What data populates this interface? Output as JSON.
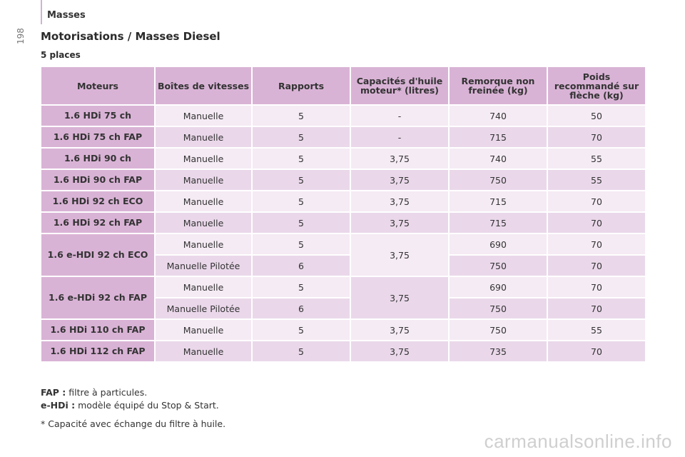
{
  "header": {
    "section": "Masses",
    "page_number": "198"
  },
  "title": "Motorisations / Masses Diesel",
  "subtitle": "5 places",
  "table": {
    "headers": [
      "Moteurs",
      "Boîtes de vitesses",
      "Rapports",
      "Capacités d'huile moteur* (litres)",
      "Remorque non freinée (kg)",
      "Poids recommandé sur flèche (kg)"
    ],
    "rows": [
      {
        "engine": "1.6 HDi 75 ch",
        "gearbox": "Manuelle",
        "ratios": "5",
        "oil": "-",
        "trailer": "740",
        "nose_weight": "50"
      },
      {
        "engine": "1.6 HDi 75 ch FAP",
        "gearbox": "Manuelle",
        "ratios": "5",
        "oil": "-",
        "trailer": "715",
        "nose_weight": "70"
      },
      {
        "engine": "1.6 HDi 90 ch",
        "gearbox": "Manuelle",
        "ratios": "5",
        "oil": "3,75",
        "trailer": "740",
        "nose_weight": "55"
      },
      {
        "engine": "1.6 HDi 90 ch FAP",
        "gearbox": "Manuelle",
        "ratios": "5",
        "oil": "3,75",
        "trailer": "750",
        "nose_weight": "55"
      },
      {
        "engine": "1.6 HDi 92 ch ECO",
        "gearbox": "Manuelle",
        "ratios": "5",
        "oil": "3,75",
        "trailer": "715",
        "nose_weight": "70"
      },
      {
        "engine": "1.6 HDi 92 ch FAP",
        "gearbox": "Manuelle",
        "ratios": "5",
        "oil": "3,75",
        "trailer": "715",
        "nose_weight": "70"
      }
    ],
    "group1": {
      "engine": "1.6 e-HDI 92 ch ECO",
      "oil": "3,75",
      "sub": [
        {
          "gearbox": "Manuelle",
          "ratios": "5",
          "trailer": "690",
          "nose_weight": "70"
        },
        {
          "gearbox": "Manuelle Pilotée",
          "ratios": "6",
          "trailer": "750",
          "nose_weight": "70"
        }
      ]
    },
    "group2": {
      "engine": "1.6 e-HDi 92 ch FAP",
      "oil": "3,75",
      "sub": [
        {
          "gearbox": "Manuelle",
          "ratios": "5",
          "trailer": "690",
          "nose_weight": "70"
        },
        {
          "gearbox": "Manuelle Pilotée",
          "ratios": "6",
          "trailer": "750",
          "nose_weight": "70"
        }
      ]
    },
    "rows_end": [
      {
        "engine": "1.6 HDi 110 ch FAP",
        "gearbox": "Manuelle",
        "ratios": "5",
        "oil": "3,75",
        "trailer": "750",
        "nose_weight": "55"
      },
      {
        "engine": "1.6 HDi 112 ch FAP",
        "gearbox": "Manuelle",
        "ratios": "5",
        "oil": "3,75",
        "trailer": "735",
        "nose_weight": "70"
      }
    ]
  },
  "notes": {
    "fap_term": "FAP :",
    "fap_text": " filtre à particules.",
    "ehdi_term": "e-HDi :",
    "ehdi_text": " modèle équipé du Stop & Start.",
    "oil_note": "* Capacité avec échange du filtre à huile."
  },
  "watermark": "carmanualsonline.info"
}
